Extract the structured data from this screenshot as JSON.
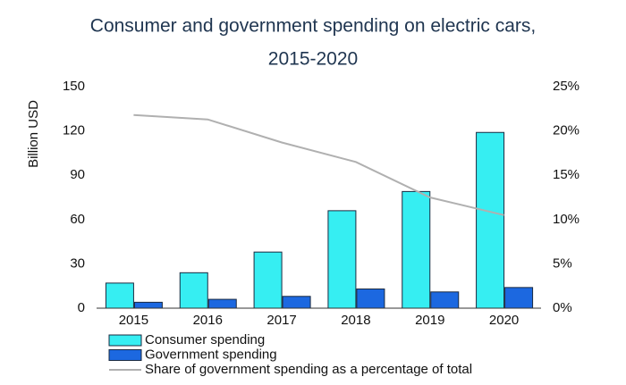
{
  "chart_data": {
    "type": "bar-line",
    "title": [
      "Consumer and government spending on electric cars,",
      "2015-2020"
    ],
    "y_label": "Billion USD",
    "categories": [
      "2015",
      "2016",
      "2017",
      "2018",
      "2019",
      "2020"
    ],
    "series": [
      {
        "name": "Consumer spending",
        "color": "#36eef2",
        "type": "bar",
        "values": [
          17,
          24,
          38,
          66,
          79,
          119
        ]
      },
      {
        "name": "Government spending",
        "color": "#1c68e0",
        "type": "bar",
        "values": [
          4,
          6,
          8,
          13,
          11,
          14
        ]
      },
      {
        "name": "Share of government spending as a percentage of total",
        "color": "#b0b0b0",
        "type": "line",
        "axis": "y2",
        "values": [
          21.8,
          21.3,
          18.7,
          16.5,
          12.5,
          10.5
        ]
      }
    ],
    "ylim": [
      0,
      150
    ],
    "yticks": [
      0,
      30,
      60,
      90,
      120,
      150
    ],
    "y2lim": [
      0,
      25
    ],
    "y2ticks": [
      {
        "value": 0,
        "label": "0%"
      },
      {
        "value": 5,
        "label": "5%"
      },
      {
        "value": 10,
        "label": "10%"
      },
      {
        "value": 15,
        "label": "15%"
      },
      {
        "value": 20,
        "label": "20%"
      },
      {
        "value": 25,
        "label": "25%"
      }
    ],
    "grid": false
  }
}
